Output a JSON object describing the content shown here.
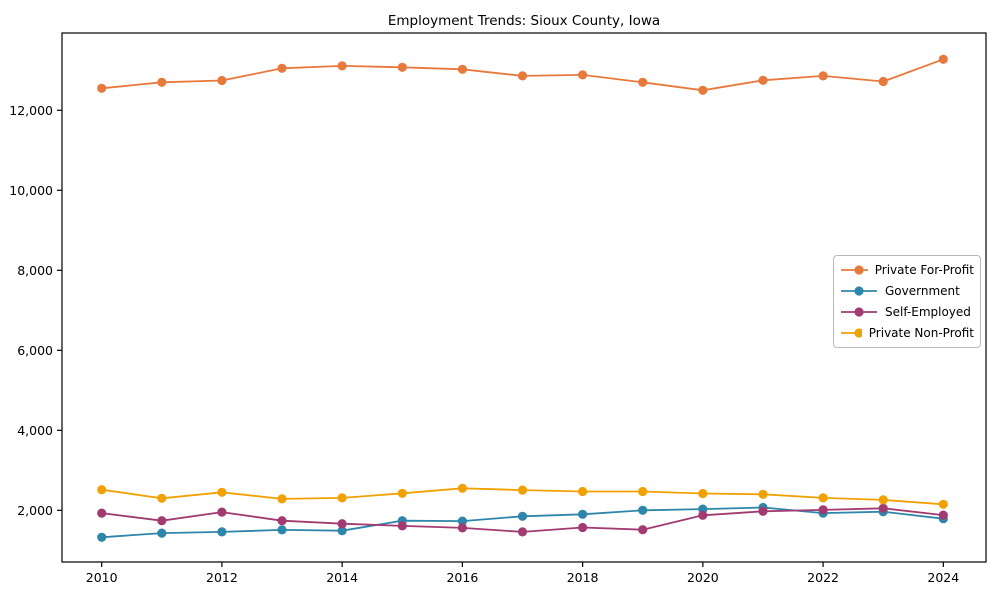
{
  "chart_data": {
    "type": "line",
    "title": "Employment Trends: Sioux County, Iowa",
    "x": [
      2010,
      2011,
      2012,
      2013,
      2014,
      2015,
      2016,
      2017,
      2018,
      2019,
      2020,
      2021,
      2022,
      2023,
      2024
    ],
    "series": [
      {
        "name": "Private For-Profit",
        "color": "#E8793D",
        "values": [
          12550,
          12700,
          12745,
          13050,
          13110,
          13075,
          13025,
          12860,
          12885,
          12700,
          12500,
          12750,
          12860,
          12720,
          13275
        ]
      },
      {
        "name": "Government",
        "color": "#2E86AB",
        "values": [
          1325,
          1430,
          1460,
          1510,
          1490,
          1740,
          1730,
          1850,
          1900,
          2000,
          2030,
          2070,
          1930,
          1965,
          1790
        ]
      },
      {
        "name": "Self-Employed",
        "color": "#A23B72",
        "values": [
          1930,
          1740,
          1955,
          1740,
          1665,
          1610,
          1560,
          1460,
          1570,
          1515,
          1875,
          1975,
          2010,
          2050,
          1880
        ]
      },
      {
        "name": "Private Non-Profit",
        "color": "#F2A104",
        "values": [
          2515,
          2300,
          2450,
          2285,
          2310,
          2425,
          2550,
          2505,
          2470,
          2470,
          2420,
          2400,
          2310,
          2260,
          2150
        ]
      }
    ],
    "xlabel": "",
    "ylabel": "",
    "xlim": [
      2009.34,
      2024.71
    ],
    "ylim": [
      708,
      13932
    ],
    "xticks": [
      2010,
      2012,
      2014,
      2016,
      2018,
      2020,
      2022,
      2024
    ],
    "xtick_labels": [
      "2010",
      "2012",
      "2014",
      "2016",
      "2018",
      "2020",
      "2022",
      "2024"
    ],
    "yticks": [
      2000,
      4000,
      6000,
      8000,
      10000,
      12000
    ],
    "ytick_labels": [
      "2,000",
      "4,000",
      "6,000",
      "8,000",
      "10,000",
      "12,000"
    ],
    "grid": false,
    "legend_position": "center-right",
    "axis_color": "#000000",
    "background_color": "#ffffff"
  }
}
